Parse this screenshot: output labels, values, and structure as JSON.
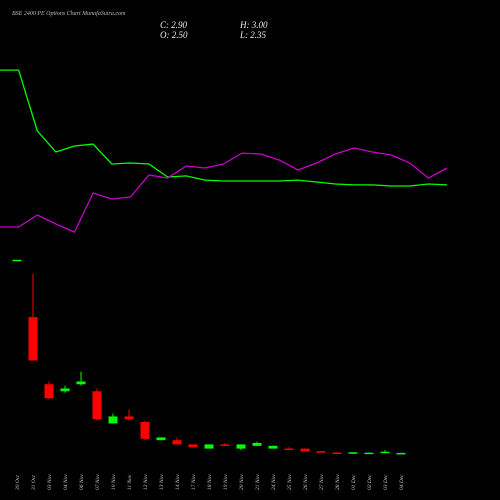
{
  "chart_data": {
    "type": "candlestick",
    "title": "BSE 2400 PE Options Chart MunafaSutra.com",
    "readout": [
      "C: 2.90",
      "H: 3.00",
      "O: 2.50",
      "L: 2.35"
    ],
    "categories": [
      "30 Oct",
      "31 Oct",
      "03 Nov",
      "04 Nov",
      "06 Nov",
      "07 Nov",
      "10 Nov",
      "11 Nov",
      "12 Nov",
      "13 Nov",
      "14 Nov",
      "17 Nov",
      "18 Nov",
      "19 Nov",
      "20 Nov",
      "21 Nov",
      "24 Nov",
      "25 Nov",
      "26 Nov",
      "27 Nov",
      "28 Nov",
      "01 Dec",
      "02 Dec",
      "03 Dec",
      "04 Dec"
    ],
    "open": [
      141,
      100,
      52,
      47,
      52,
      47,
      24,
      29,
      25,
      12,
      12,
      9,
      6,
      9,
      6,
      8,
      6,
      6,
      6,
      4.2,
      3.2,
      2.6,
      2.9,
      3.0,
      2.5
    ],
    "high": [
      141,
      131,
      54,
      51,
      61,
      49,
      31,
      34,
      26,
      14,
      14,
      9,
      9,
      10,
      9,
      11,
      8,
      7,
      6,
      4.4,
      3.4,
      3.6,
      3.3,
      4.8,
      3.0
    ],
    "low": [
      141,
      69,
      41,
      46,
      51,
      26,
      24,
      26,
      12,
      12,
      9,
      7,
      6,
      8,
      5,
      8,
      6,
      5,
      4,
      3.3,
      2.2,
      2.4,
      2.8,
      2.9,
      2.35
    ],
    "close": [
      141,
      69,
      42,
      49,
      54,
      27,
      29,
      27,
      13,
      14,
      9,
      7,
      9,
      8,
      9,
      10,
      8,
      5,
      4,
      3.4,
      2.4,
      3.4,
      3.1,
      3.8,
      2.9
    ],
    "up_color": "#00ff00",
    "down_color": "#ff0000",
    "ylim": [
      0,
      148
    ],
    "y2lim": [
      0,
      100
    ],
    "series": [
      {
        "color": "#00ff00",
        "axis": "y2",
        "values": [
          94.4,
          94.4,
          60.6,
          48.9,
          52.2,
          53.3,
          42.2,
          42.8,
          42.2,
          35,
          35.6,
          33.3,
          32.8,
          32.8,
          32.8,
          32.8,
          33.3,
          32.2,
          31.1,
          30.6,
          30.6,
          30,
          30,
          31.1,
          30.6
        ]
      },
      {
        "color": "#cc00cc",
        "axis": "y2",
        "values": [
          7.2,
          7.2,
          13.9,
          8.9,
          4.4,
          26.1,
          22.8,
          23.9,
          36.1,
          34.4,
          41.1,
          40,
          42.2,
          48.3,
          47.8,
          44.4,
          38.9,
          42.8,
          47.8,
          51.1,
          48.9,
          47.2,
          42.8,
          34.4,
          40
        ]
      }
    ]
  }
}
